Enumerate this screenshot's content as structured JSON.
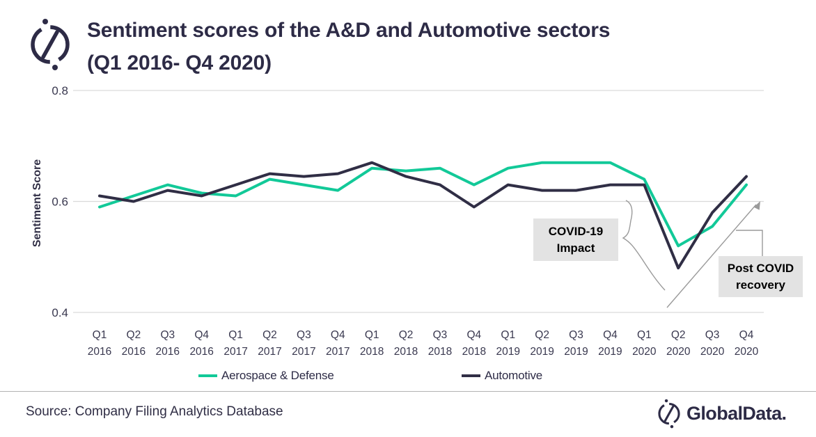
{
  "header": {
    "title_line1": "Sentiment scores of the A&D and Automotive sectors",
    "title_line2": "(Q1 2016- Q4 2020)"
  },
  "chart_data": {
    "type": "line",
    "title": "Sentiment scores of the A&D and Automotive sectors (Q1 2016- Q4 2020)",
    "xlabel": "",
    "ylabel": "Sentiment Score",
    "ylim": [
      0.4,
      0.8
    ],
    "yticks": [
      0.8,
      0.6,
      0.4
    ],
    "grid": "horizontal",
    "legend_position": "bottom",
    "categories": [
      "Q1 2016",
      "Q2 2016",
      "Q3 2016",
      "Q4 2016",
      "Q1 2017",
      "Q2 2017",
      "Q3 2017",
      "Q4 2017",
      "Q1 2018",
      "Q2 2018",
      "Q3 2018",
      "Q4 2018",
      "Q1 2019",
      "Q2 2019",
      "Q3 2019",
      "Q4 2019",
      "Q1 2020",
      "Q2 2020",
      "Q3 2020",
      "Q4 2020"
    ],
    "series": [
      {
        "name": "Aerospace & Defense",
        "color": "#12c998",
        "values": [
          0.59,
          0.61,
          0.63,
          0.615,
          0.61,
          0.64,
          0.63,
          0.62,
          0.66,
          0.655,
          0.66,
          0.63,
          0.66,
          0.67,
          0.67,
          0.67,
          0.64,
          0.52,
          0.555,
          0.63
        ]
      },
      {
        "name": "Automotive",
        "color": "#302e45",
        "values": [
          0.61,
          0.6,
          0.62,
          0.61,
          0.63,
          0.65,
          0.645,
          0.65,
          0.67,
          0.645,
          0.63,
          0.59,
          0.63,
          0.62,
          0.62,
          0.63,
          0.63,
          0.48,
          0.58,
          0.645
        ]
      }
    ],
    "annotations": [
      {
        "text": "COVID-19 Impact",
        "points_at": "Q1 2020 - Q2 2020 drop",
        "shape": "curly-brace"
      },
      {
        "text": "Post COVID recovery",
        "points_at": "Q3 2020 - Q4 2020 rise",
        "shape": "arrow"
      }
    ]
  },
  "annotations": {
    "covid_line1": "COVID-19",
    "covid_line2": "Impact",
    "recovery_line1": "Post COVID",
    "recovery_line2": "recovery"
  },
  "footer": {
    "source": "Source: Company Filing Analytics Database",
    "brand": "GlobalData."
  },
  "colors": {
    "accent_green": "#12c998",
    "dark_navy": "#302e45",
    "gridline": "#d9d9d9",
    "annotation_gray": "#9a9a9a",
    "annotation_box_bg": "#e3e3e3",
    "divider": "#b3b3b3"
  }
}
